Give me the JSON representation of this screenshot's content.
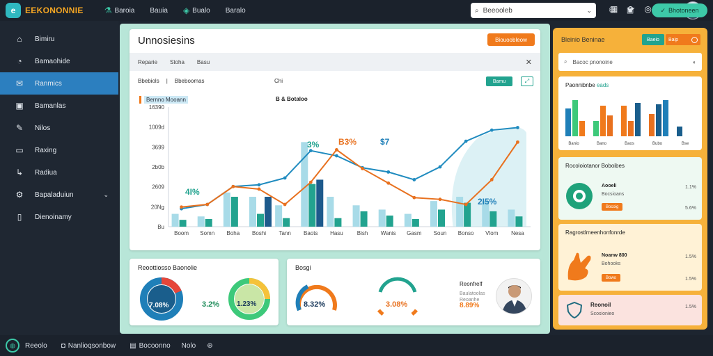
{
  "app": {
    "logo_letter": "e",
    "name": "EEKONONNIE"
  },
  "topnav": [
    {
      "label": "Baroia",
      "icon": "flask-icon"
    },
    {
      "label": "Bauia",
      "icon": "none"
    },
    {
      "label": "Bualo",
      "icon": "chart-icon"
    },
    {
      "label": "Baralo",
      "icon": "grid-icon"
    }
  ],
  "search": {
    "placeholder": "Beeooleb"
  },
  "sidebar": {
    "items": [
      {
        "label": "Bimiru",
        "icon": "home-icon"
      },
      {
        "label": "Bamaohide",
        "icon": "gauge-icon"
      },
      {
        "label": "Ranmics",
        "icon": "mail-icon",
        "active": true
      },
      {
        "label": "Bamanlas",
        "icon": "calendar-icon"
      },
      {
        "label": "Nilos",
        "icon": "tools-icon"
      },
      {
        "label": "Raxing",
        "icon": "folder-icon"
      },
      {
        "label": "Radiua",
        "icon": "arrow-icon"
      },
      {
        "label": "Bapaladuiun",
        "icon": "settings-icon",
        "has_arrow": true
      },
      {
        "label": "Dienoinamy",
        "icon": "doc-icon"
      }
    ]
  },
  "main": {
    "title": "Unnosiesins",
    "export_label": "Biouoobleow",
    "subtabs": [
      "Reparie",
      "Stoha",
      "Basu"
    ],
    "filter_left": "Bbebiols",
    "filter_left2": "Bbeboomas",
    "filter_mid": "Chi",
    "btn_label": "Bamu",
    "legend1": "Bernno Mooann",
    "legend2": "B & Botaloo"
  },
  "chart_data": {
    "type": "line",
    "title": "",
    "xlabel": "",
    "ylabel": "",
    "ylim": [
      0,
      1400
    ],
    "yticks": [
      "Bu",
      "20Ng",
      "2609",
      "2b0b",
      "3699",
      "1009d",
      "16390"
    ],
    "categories": [
      "Boom",
      "Somn",
      "Boha",
      "Boshi",
      "Tann",
      "Baots",
      "Hasu",
      "Bish",
      "Wanis",
      "Gasm",
      "Soun",
      "Bonso",
      "Vlom",
      "Nesa"
    ],
    "series": [
      {
        "color": "#1f8bbf",
        "values": [
          210,
          260,
          470,
          490,
          570,
          890,
          830,
          690,
          640,
          550,
          700,
          1000,
          1130,
          1160
        ]
      },
      {
        "color": "#e8711f",
        "values": [
          230,
          260,
          470,
          440,
          260,
          520,
          900,
          680,
          510,
          340,
          320,
          260,
          550,
          990
        ]
      },
      {
        "color": "#a8dbe8",
        "values": [
          150,
          120,
          400,
          350,
          250,
          990,
          350,
          250,
          200,
          150,
          300,
          350,
          300,
          200
        ]
      },
      {
        "color": "#22a38f",
        "values": [
          80,
          90,
          350,
          150,
          100,
          500,
          100,
          180,
          130,
          90,
          200,
          280,
          180,
          120
        ]
      },
      {
        "color": "#1d5a8c",
        "values": [
          0,
          0,
          0,
          350,
          0,
          550,
          0,
          0,
          0,
          0,
          0,
          0,
          0,
          0
        ]
      }
    ],
    "annotations": [
      "4I%",
      "3%",
      "B3%",
      "$7",
      "2I5%"
    ]
  },
  "stats1": {
    "title": "Reoottiosso Baonolie",
    "donut1_value": "7.08%",
    "donut2_label": "3.2%",
    "donut2_value": "1.23%"
  },
  "stats2": {
    "title": "Bosgi",
    "donut1_value": "8.32%",
    "donut2_value": "3.08%",
    "profile_name": "Reonfrelf",
    "profile_line1": "Baulatoolas",
    "profile_line2": "Reoanhe",
    "profile_pct": "8.89%"
  },
  "right": {
    "head": "Bleinio Beninae",
    "tab1": "Baeio",
    "tab2": "Baip",
    "search_placeholder": "Bacoc pnonoine",
    "bars_title": "Paonnibnbe",
    "bars_title_acc": "eads",
    "bars_categories": [
      "Banio",
      "Bano",
      "Baos",
      "Bubo",
      "Bse"
    ],
    "green_title": "Rocoloiotanor Boboibes",
    "green_label": "Aooeli",
    "green_sub": "Bocsioans",
    "green_pill": "Bocoig",
    "green_v1": "1.1%",
    "green_v2": "5.6%",
    "peach_title": "Ragrostlmeenhonfonrde",
    "peach_label": "Noanw 800",
    "peach_sub": "Bohooks",
    "peach_pill": "Bowo",
    "peach_v1": "1.5%",
    "peach_v2": "1.5%",
    "pink_title": "Reonoil",
    "pink_sub": "Scosionieo",
    "pink_v": "1.5%"
  },
  "bottom": {
    "brand": "Reeolo",
    "item1": "Nanlioqsonbow",
    "item2": "Bocoonno",
    "item3": "Nolo",
    "action": "Bhotoneen"
  }
}
